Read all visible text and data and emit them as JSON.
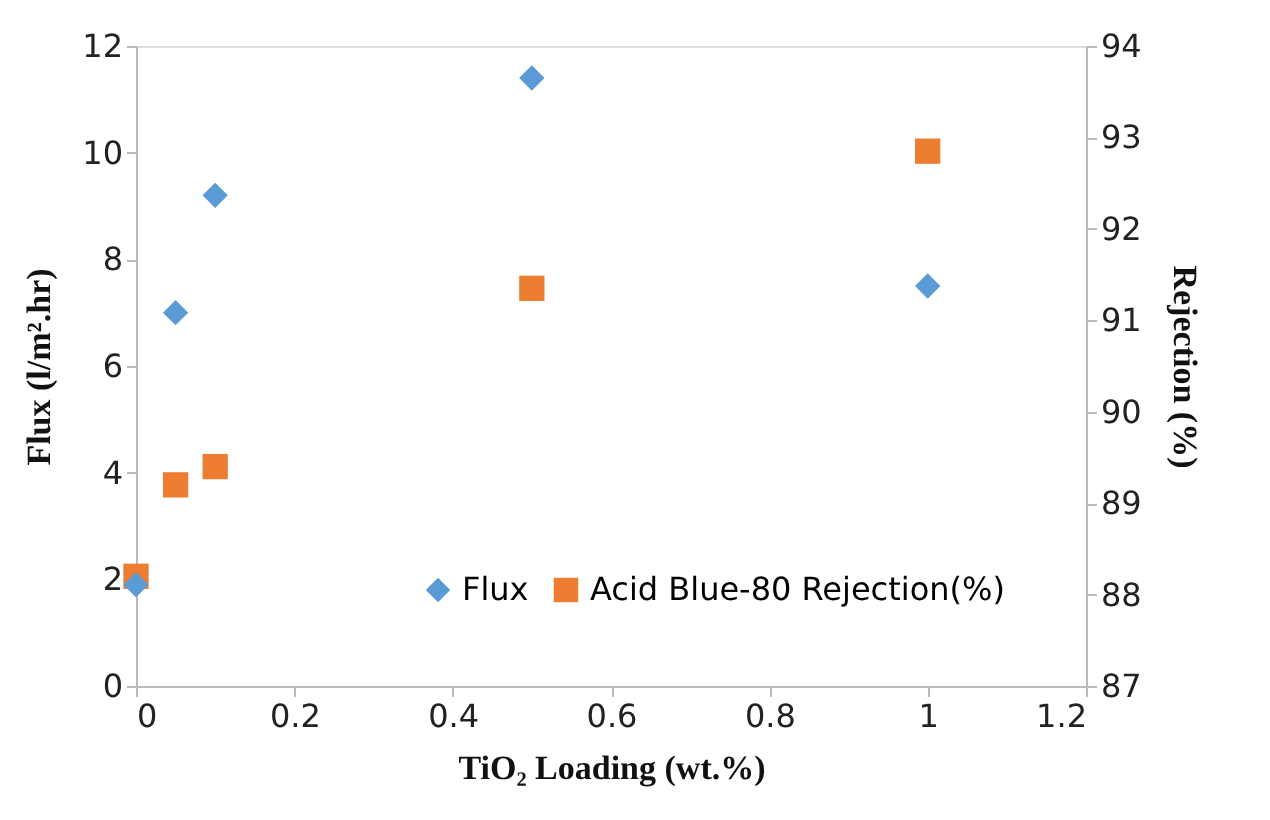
{
  "chart_data": {
    "type": "scatter",
    "xlabel": "TiO₂ Loading (wt.%)",
    "ylabel": "Flux (l/m².hr)",
    "y2label": "Rejection (%)",
    "x": [
      0,
      0.05,
      0.1,
      0.5,
      1
    ],
    "series": [
      {
        "name": "Flux",
        "color": "#5b9bd5",
        "marker": "diamond",
        "values": [
          1.9,
          7.0,
          9.2,
          11.4,
          7.5
        ]
      },
      {
        "name": "Acid Blue-80 Rejection(%)",
        "color": "#ed7d31",
        "marker": "square",
        "axis": "y2",
        "values": [
          88.2,
          89.2,
          89.4,
          91.35,
          92.85
        ]
      }
    ],
    "xlim": [
      0,
      1.2
    ],
    "xticks": [
      0,
      0.2,
      0.4,
      0.6,
      0.8,
      1,
      1.2
    ],
    "ylim": [
      0,
      12
    ],
    "yticks": [
      0,
      2,
      4,
      6,
      8,
      10,
      12
    ],
    "y2lim": [
      87,
      94
    ],
    "y2ticks": [
      87,
      88,
      89,
      90,
      91,
      92,
      93,
      94
    ],
    "grid": false,
    "legend": "bottom right"
  }
}
